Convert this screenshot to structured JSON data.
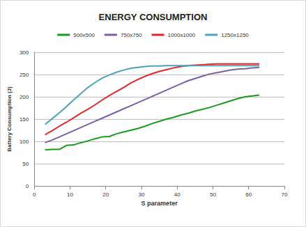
{
  "chart_data": {
    "type": "line",
    "title": "ENERGY CONSUMPTION",
    "x_label": "S parameter",
    "y_label": "Battery Consumption (J)",
    "x": [
      3,
      5,
      7,
      9,
      11,
      13,
      15,
      17,
      19,
      21,
      23,
      25,
      27,
      29,
      31,
      33,
      35,
      37,
      39,
      41,
      43,
      45,
      47,
      49,
      51,
      53,
      55,
      57,
      59,
      61,
      63
    ],
    "series": [
      {
        "name": "500x500",
        "color": "#1a9a1a",
        "values": [
          81,
          82,
          82,
          91,
          92,
          97,
          101,
          106,
          110,
          111,
          117,
          121,
          125,
          129,
          134,
          140,
          145,
          150,
          154,
          159,
          163,
          168,
          172,
          176,
          181,
          186,
          191,
          196,
          200,
          202,
          204
        ]
      },
      {
        "name": "750x750",
        "color": "#7b5ea7",
        "values": [
          97,
          103,
          110,
          117,
          124,
          131,
          138,
          145,
          152,
          159,
          166,
          173,
          180,
          187,
          194,
          201,
          208,
          215,
          222,
          229,
          236,
          241,
          246,
          251,
          254,
          257,
          260,
          262,
          263,
          265,
          266
        ]
      },
      {
        "name": "1000x1000",
        "color": "#e3262a",
        "values": [
          115,
          124,
          134,
          143,
          153,
          163,
          172,
          182,
          193,
          203,
          212,
          221,
          231,
          239,
          246,
          252,
          257,
          261,
          265,
          268,
          270,
          271,
          272,
          273,
          274,
          274,
          274,
          274,
          274,
          274,
          274
        ]
      },
      {
        "name": "1250x1250",
        "color": "#4aa3b8",
        "values": [
          138,
          151,
          164,
          178,
          193,
          207,
          221,
          232,
          242,
          249,
          255,
          260,
          264,
          266,
          268,
          269,
          269,
          270,
          270,
          270,
          270,
          270,
          270,
          270,
          270,
          270,
          270,
          270,
          270,
          270,
          270
        ]
      }
    ],
    "xlim": [
      0,
      70
    ],
    "xticks": [
      0,
      10,
      20,
      30,
      40,
      50,
      60,
      70
    ],
    "ylim": [
      0,
      300
    ],
    "yticks": [
      0,
      50,
      100,
      150,
      200,
      250,
      300
    ],
    "grid": true,
    "legend": "top",
    "marker": "none",
    "line_style": "solid"
  }
}
